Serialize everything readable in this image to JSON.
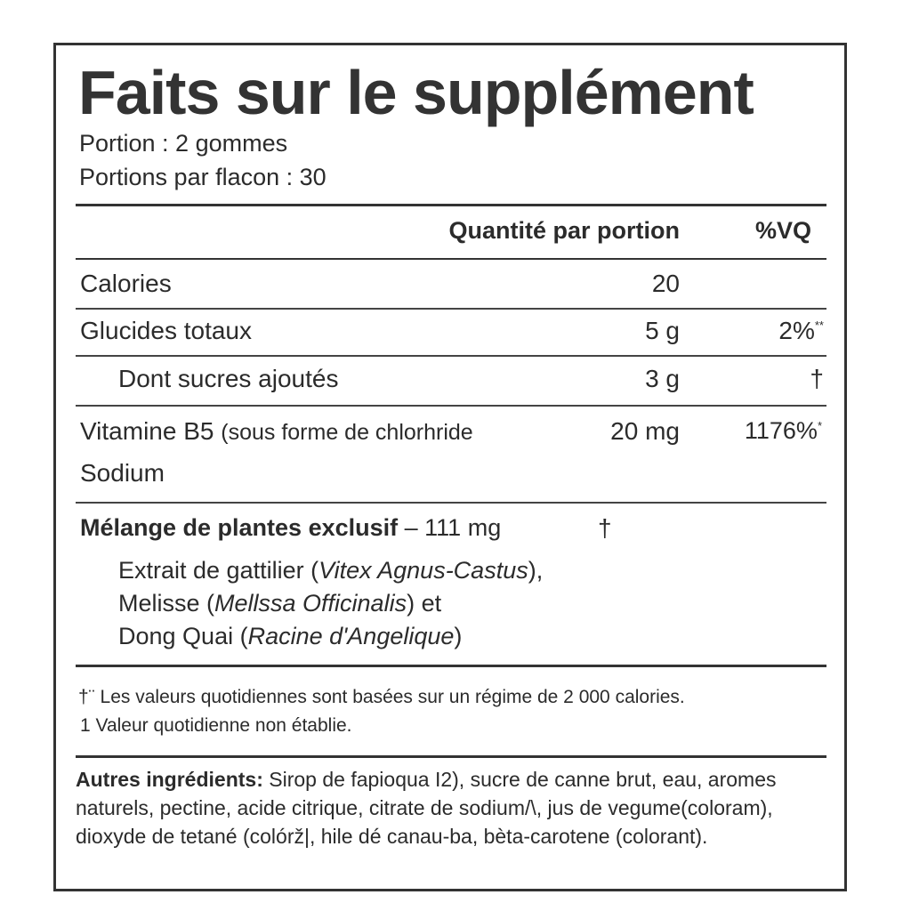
{
  "title": "Faits sur le supplément",
  "serving_size": "Portion : 2 gommes",
  "servings_per_container": "Portions par flacon  : 30",
  "header": {
    "amount": "Quantité par portion",
    "dv": "%VQ"
  },
  "rows": [
    {
      "name": "Calories",
      "amount": "20",
      "dv": ""
    },
    {
      "name": "Glucides totaux",
      "amount": "5 g",
      "dv": "2%",
      "dv_mark": "**"
    },
    {
      "name": "Dont sucres ajoutés",
      "amount": "3 g",
      "dv": "†"
    },
    {
      "name": "Vitamine B5",
      "name_extra": "(sous forme de chlorhride",
      "name_line2": "Sodium",
      "amount": "20 mg",
      "dv": "1176%",
      "dv_mark": "*"
    }
  ],
  "blend": {
    "name": "Mélange de plantes exclusif",
    "amount": "– 111 mg",
    "dv": "†",
    "lines": [
      {
        "text": "Extrait de gattilier (",
        "latin": "Vitex Agnus-Castus",
        "end": "),"
      },
      {
        "text": "Melisse (",
        "latin": "Mellssa Officinalis",
        "end": ") et"
      },
      {
        "text": "Dong Quai (",
        "latin": "Racine d'Angelique",
        "end": ")"
      }
    ]
  },
  "footnotes": {
    "line1_mark": "†¨",
    "line1": "Les valeurs quotidiennes sont basées sur un régime de 2 000 calories.",
    "line2": "1 Valeur quotidienne non établie."
  },
  "other_ingredients": {
    "label": "Autres ingrédients:",
    "text": "Sirop de fapioqua I2), sucre de canne brut, eau, aromes naturels, pectine, acide citrique, citrate de sodium/\\, jus de vegume(coloram), dioxyde de tetané (colórž|, hile dé canau-ba, bèta-carotene (colorant)."
  }
}
